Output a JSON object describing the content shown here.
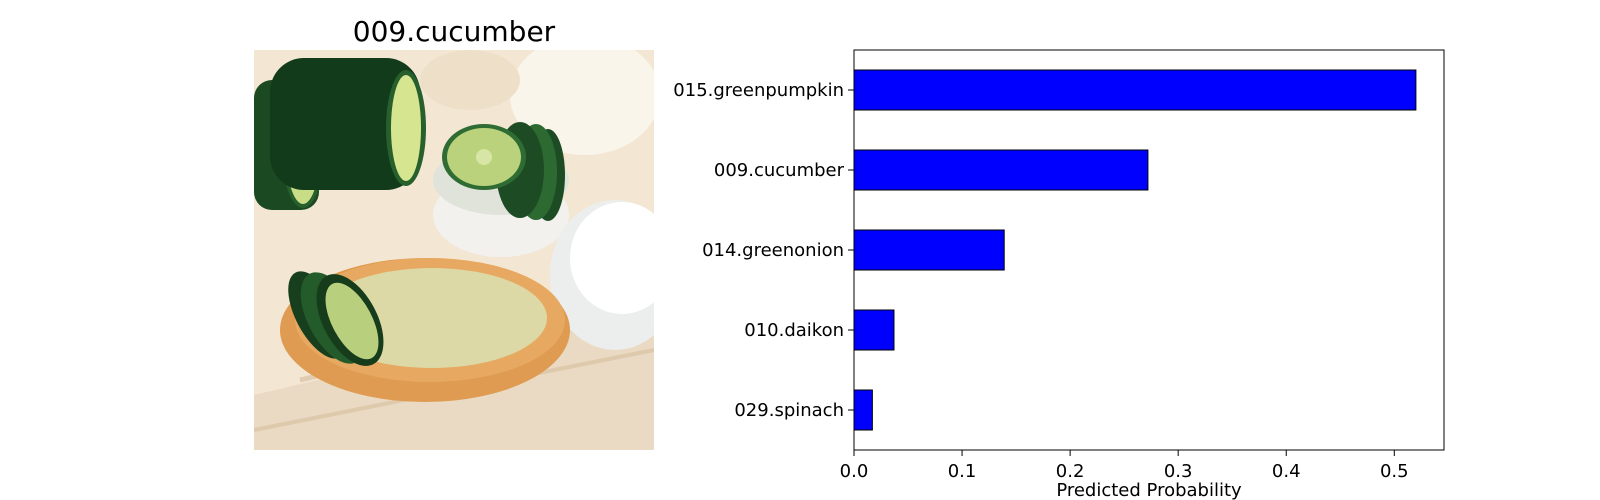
{
  "image_panel": {
    "title": "009.cucumber"
  },
  "colors": {
    "bar_fill": "#0000ff",
    "bar_edge": "#000000",
    "axes_edge": "#000000",
    "photo_background": "#f3e7d4",
    "cucumber_dark": "#1b4a22",
    "cucumber_flesh": "#c9dc86",
    "bowl": "#e7a961",
    "liquid": "#ddd9a6",
    "white_bowl": "#f7f7f4"
  },
  "chart_data": {
    "type": "bar",
    "orientation": "horizontal",
    "categories": [
      "015.greenpumpkin",
      "009.cucumber",
      "014.greenonion",
      "010.daikon",
      "029.spinach"
    ],
    "values": [
      0.52,
      0.272,
      0.139,
      0.037,
      0.017
    ],
    "xlabel": "Predicted Probability",
    "ylabel": "",
    "xlim": [
      0,
      0.546
    ],
    "xticks": [
      "0.0",
      "0.1",
      "0.2",
      "0.3",
      "0.4",
      "0.5"
    ],
    "grid": false
  }
}
